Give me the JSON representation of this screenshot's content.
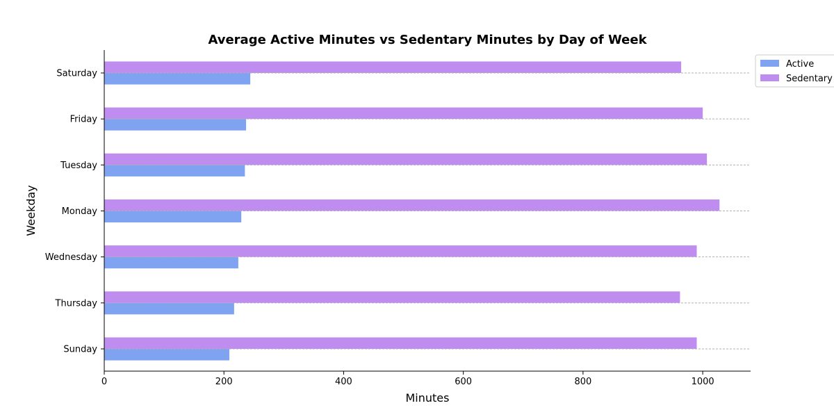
{
  "chart_data": {
    "type": "bar",
    "orientation": "horizontal",
    "title": "Average Active Minutes vs Sedentary Minutes by Day of Week",
    "xlabel": "Minutes",
    "ylabel": "Weekday",
    "categories": [
      "Sunday",
      "Thursday",
      "Wednesday",
      "Monday",
      "Tuesday",
      "Friday",
      "Saturday"
    ],
    "series": [
      {
        "name": "Active",
        "color": "#7fa3f0",
        "values": [
          209,
          217,
          224,
          229,
          235,
          237,
          244
        ]
      },
      {
        "name": "Sedentary",
        "color": "#bf8cf0",
        "values": [
          990,
          962,
          990,
          1028,
          1007,
          1000,
          964
        ]
      }
    ],
    "xlim": [
      0,
      1080
    ],
    "xticks": [
      0,
      200,
      400,
      600,
      800,
      1000
    ],
    "grid": "horizontal-dashed",
    "legend": "upper-right-outside"
  }
}
